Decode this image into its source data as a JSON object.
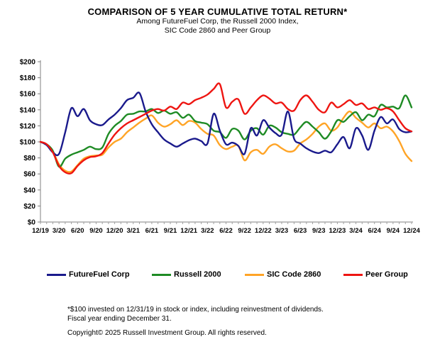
{
  "header": {
    "title": "COMPARISON OF 5 YEAR CUMULATIVE TOTAL RETURN*",
    "subtitle_line1": "Among FutureFuel Corp, the Russell 2000 Index,",
    "subtitle_line2": "SIC Code 2860 and Peer Group"
  },
  "chart_data": {
    "type": "line",
    "title": "COMPARISON OF 5 YEAR CUMULATIVE TOTAL RETURN*",
    "ylim": [
      0,
      200
    ],
    "y_tick_step": 20,
    "y_ticks": [
      "$200",
      "$180",
      "$160",
      "$140",
      "$120",
      "$100",
      "$80",
      "$60",
      "$40",
      "$20",
      "$0"
    ],
    "x_tick_labels": [
      "12/19",
      "3/20",
      "6/20",
      "9/20",
      "12/20",
      "3/21",
      "6/21",
      "9/21",
      "12/21",
      "3/22",
      "6/22",
      "9/22",
      "12/22",
      "3/23",
      "6/23",
      "9/23",
      "12/23",
      "3/24",
      "6/24",
      "9/24",
      "12/24"
    ],
    "x_unit": "month",
    "grid": false,
    "legend_position": "bottom",
    "series": [
      {
        "name": "FutureFuel Corp",
        "color": "#1a1a8c",
        "values": [
          100,
          96,
          87,
          85,
          112,
          142,
          132,
          141,
          127,
          122,
          121,
          128,
          134,
          142,
          152,
          155,
          161,
          138,
          122,
          112,
          103,
          98,
          94,
          98,
          102,
          104,
          101,
          98,
          135,
          114,
          97,
          99,
          95,
          85,
          117,
          108,
          127,
          118,
          111,
          109,
          138,
          104,
          98,
          92,
          88,
          86,
          89,
          87,
          97,
          106,
          92,
          117,
          108,
          90,
          114,
          131,
          123,
          128,
          116,
          112,
          113
        ]
      },
      {
        "name": "Russell 2000",
        "color": "#1e8b24",
        "values": [
          100,
          97,
          89,
          69,
          79,
          84,
          87,
          90,
          94,
          91,
          93,
          110,
          120,
          126,
          134,
          135,
          138,
          138,
          141,
          136,
          139,
          135,
          137,
          130,
          134,
          126,
          124,
          122,
          114,
          112,
          105,
          116,
          114,
          103,
          114,
          117,
          109,
          120,
          118,
          112,
          110,
          109,
          118,
          125,
          119,
          112,
          104,
          113,
          127,
          125,
          132,
          137,
          127,
          134,
          132,
          146,
          143,
          144,
          142,
          158,
          143
        ]
      },
      {
        "name": "SIC Code 2860",
        "color": "#ffa426",
        "values": [
          100,
          97,
          88,
          72,
          64,
          63,
          71,
          79,
          82,
          83,
          84,
          93,
          100,
          104,
          112,
          118,
          124,
          129,
          133,
          124,
          119,
          122,
          127,
          121,
          126,
          124,
          116,
          110,
          108,
          96,
          91,
          94,
          95,
          77,
          87,
          90,
          85,
          94,
          97,
          92,
          88,
          89,
          98,
          103,
          110,
          119,
          123,
          114,
          118,
          130,
          138,
          130,
          124,
          118,
          123,
          117,
          119,
          113,
          101,
          85,
          76
        ]
      },
      {
        "name": "Peer Group",
        "color": "#ee1511",
        "values": [
          100,
          97,
          87,
          70,
          62,
          61,
          70,
          77,
          81,
          82,
          86,
          98,
          109,
          117,
          123,
          127,
          131,
          135,
          139,
          141,
          139,
          144,
          141,
          149,
          147,
          152,
          155,
          159,
          166,
          172,
          143,
          150,
          153,
          135,
          143,
          152,
          158,
          154,
          148,
          149,
          141,
          139,
          152,
          158,
          150,
          140,
          137,
          149,
          143,
          147,
          152,
          146,
          148,
          141,
          143,
          140,
          142,
          138,
          127,
          117,
          113
        ]
      }
    ]
  },
  "footnotes": {
    "asterisk_note": "*$100 invested on 12/31/19 in stock or index, including reinvestment of dividends.",
    "fiscal_note": "Fiscal year ending December 31.",
    "copyright": "Copyright© 2025 Russell Investment Group. All rights reserved."
  }
}
